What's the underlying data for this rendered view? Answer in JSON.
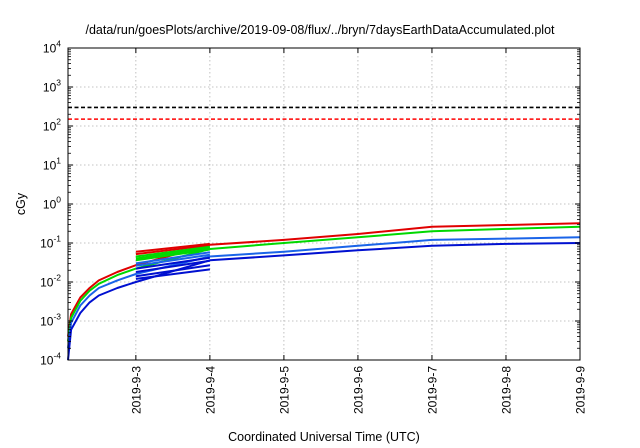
{
  "chart_data": {
    "type": "line",
    "title": "/data/run/goesPlots/archive/2019-09-08/flux/../bryn/7daysEarthDataAccumulated.plot",
    "xlabel": "Coordinated Universal Time (UTC)",
    "ylabel": "cGy",
    "x_scale": "date",
    "y_scale": "log",
    "xlim": [
      "2019-09-02T02:00",
      "2019-09-09T00:00"
    ],
    "ylim": [
      0.0001,
      10000
    ],
    "grid": true,
    "x_ticks": [
      "2019-9-3",
      "2019-9-4",
      "2019-9-5",
      "2019-9-6",
      "2019-9-7",
      "2019-9-8",
      "2019-9-9"
    ],
    "y_ticks": [
      {
        "base": "10",
        "exp": "-4",
        "value": 0.0001
      },
      {
        "base": "10",
        "exp": "-3",
        "value": 0.001
      },
      {
        "base": "10",
        "exp": "-2",
        "value": 0.01
      },
      {
        "base": "10",
        "exp": "-1",
        "value": 0.1
      },
      {
        "base": "10",
        "exp": "0",
        "value": 1
      },
      {
        "base": "10",
        "exp": "1",
        "value": 10
      },
      {
        "base": "10",
        "exp": "2",
        "value": 100
      },
      {
        "base": "10",
        "exp": "3",
        "value": 1000
      },
      {
        "base": "10",
        "exp": "4",
        "value": 10000
      }
    ],
    "reference_lines": [
      {
        "y": 300,
        "color": "#000000",
        "style": "dashed"
      },
      {
        "y": 150,
        "color": "#ff0000",
        "style": "dashed"
      }
    ],
    "series": [
      {
        "color": "#e00000",
        "x": [
          "2019-09-02T02:00",
          "2019-09-02T03:00",
          "2019-09-02T06:00",
          "2019-09-02T09:00",
          "2019-09-02T12:00",
          "2019-09-02T18:00",
          "2019-09-03T00:00",
          "2019-09-04T00:00",
          "2019-09-05T00:00",
          "2019-09-06T00:00",
          "2019-09-07T00:00",
          "2019-09-08T00:00",
          "2019-09-09T00:00"
        ],
        "y": [
          0.0004,
          0.0015,
          0.004,
          0.007,
          0.011,
          0.018,
          0.027,
          0.09,
          0.12,
          0.17,
          0.26,
          0.29,
          0.32
        ]
      },
      {
        "color": "#00d800",
        "x": [
          "2019-09-02T02:00",
          "2019-09-02T03:00",
          "2019-09-02T06:00",
          "2019-09-02T09:00",
          "2019-09-02T12:00",
          "2019-09-02T18:00",
          "2019-09-03T00:00",
          "2019-09-04T00:00",
          "2019-09-05T00:00",
          "2019-09-06T00:00",
          "2019-09-07T00:00",
          "2019-09-08T00:00",
          "2019-09-09T00:00"
        ],
        "y": [
          0.0003,
          0.0012,
          0.0033,
          0.006,
          0.009,
          0.015,
          0.022,
          0.07,
          0.1,
          0.14,
          0.2,
          0.23,
          0.26
        ]
      },
      {
        "color": "#1a64e8",
        "x": [
          "2019-09-02T02:00",
          "2019-09-02T03:00",
          "2019-09-02T06:00",
          "2019-09-02T09:00",
          "2019-09-02T12:00",
          "2019-09-02T18:00",
          "2019-09-03T00:00",
          "2019-09-04T00:00",
          "2019-09-05T00:00",
          "2019-09-06T00:00",
          "2019-09-07T00:00",
          "2019-09-08T00:00",
          "2019-09-09T00:00"
        ],
        "y": [
          0.0002,
          0.0009,
          0.0025,
          0.0045,
          0.007,
          0.011,
          0.016,
          0.045,
          0.06,
          0.085,
          0.12,
          0.13,
          0.14
        ]
      },
      {
        "color": "#0010d0",
        "x": [
          "2019-09-02T02:00",
          "2019-09-02T03:00",
          "2019-09-02T06:00",
          "2019-09-02T09:00",
          "2019-09-02T12:00",
          "2019-09-02T18:00",
          "2019-09-03T00:00",
          "2019-09-04T00:00",
          "2019-09-05T00:00",
          "2019-09-06T00:00",
          "2019-09-07T00:00",
          "2019-09-08T00:00",
          "2019-09-09T00:00"
        ],
        "y": [
          0.0001,
          0.0006,
          0.0016,
          0.003,
          0.0045,
          0.007,
          0.01,
          0.036,
          0.048,
          0.065,
          0.085,
          0.095,
          0.1
        ]
      },
      {
        "color": "#e00000",
        "x": [
          "2019-09-03T00:00",
          "2019-09-04T00:00"
        ],
        "y": [
          0.06,
          0.095
        ]
      },
      {
        "color": "#e00000",
        "x": [
          "2019-09-03T00:00",
          "2019-09-04T00:00"
        ],
        "y": [
          0.052,
          0.088
        ]
      },
      {
        "color": "#00d800",
        "x": [
          "2019-09-03T00:00",
          "2019-09-04T00:00"
        ],
        "y": [
          0.045,
          0.08
        ]
      },
      {
        "color": "#00d800",
        "x": [
          "2019-09-03T00:00",
          "2019-09-04T00:00"
        ],
        "y": [
          0.04,
          0.075
        ]
      },
      {
        "color": "#00d800",
        "x": [
          "2019-09-03T00:00",
          "2019-09-04T00:00"
        ],
        "y": [
          0.036,
          0.068
        ]
      },
      {
        "color": "#1a64e8",
        "x": [
          "2019-09-03T00:00",
          "2019-09-04T00:00"
        ],
        "y": [
          0.03,
          0.058
        ]
      },
      {
        "color": "#1a64e8",
        "x": [
          "2019-09-03T00:00",
          "2019-09-04T00:00"
        ],
        "y": [
          0.026,
          0.05
        ]
      },
      {
        "color": "#0010d0",
        "x": [
          "2019-09-03T00:00",
          "2019-09-04T00:00"
        ],
        "y": [
          0.022,
          0.042
        ]
      },
      {
        "color": "#0010d0",
        "x": [
          "2019-09-03T00:00",
          "2019-09-04T00:00"
        ],
        "y": [
          0.018,
          0.035
        ]
      },
      {
        "color": "#0010d0",
        "x": [
          "2019-09-03T00:00",
          "2019-09-04T00:00"
        ],
        "y": [
          0.014,
          0.027
        ]
      },
      {
        "color": "#0010d0",
        "x": [
          "2019-09-03T00:00",
          "2019-09-04T00:00"
        ],
        "y": [
          0.012,
          0.021
        ]
      }
    ]
  }
}
